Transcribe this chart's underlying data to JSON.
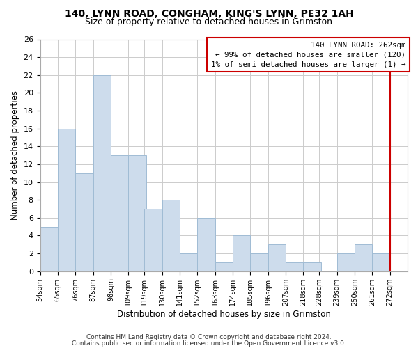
{
  "title1": "140, LYNN ROAD, CONGHAM, KING'S LYNN, PE32 1AH",
  "title2": "Size of property relative to detached houses in Grimston",
  "xlabel": "Distribution of detached houses by size in Grimston",
  "ylabel": "Number of detached properties",
  "bar_color": "#cddcec",
  "bar_edge_color": "#a0bcd4",
  "bin_labels": [
    "54sqm",
    "65sqm",
    "76sqm",
    "87sqm",
    "98sqm",
    "109sqm",
    "119sqm",
    "130sqm",
    "141sqm",
    "152sqm",
    "163sqm",
    "174sqm",
    "185sqm",
    "196sqm",
    "207sqm",
    "218sqm",
    "228sqm",
    "239sqm",
    "250sqm",
    "261sqm",
    "272sqm"
  ],
  "bar_values": [
    5,
    16,
    11,
    22,
    13,
    13,
    7,
    8,
    2,
    6,
    1,
    4,
    2,
    3,
    1,
    1,
    0,
    2,
    3,
    2,
    0
  ],
  "ylim": [
    0,
    26
  ],
  "yticks": [
    0,
    2,
    4,
    6,
    8,
    10,
    12,
    14,
    16,
    18,
    20,
    22,
    24,
    26
  ],
  "property_line_color": "#cc0000",
  "annotation_title": "140 LYNN ROAD: 262sqm",
  "annotation_line1": "← 99% of detached houses are smaller (120)",
  "annotation_line2": "1% of semi-detached houses are larger (1) →",
  "footer1": "Contains HM Land Registry data © Crown copyright and database right 2024.",
  "footer2": "Contains public sector information licensed under the Open Government Licence v3.0.",
  "bin_edges": [
    54,
    65,
    76,
    87,
    98,
    109,
    119,
    130,
    141,
    152,
    163,
    174,
    185,
    196,
    207,
    218,
    228,
    239,
    250,
    261,
    272
  ],
  "bin_width": 11
}
